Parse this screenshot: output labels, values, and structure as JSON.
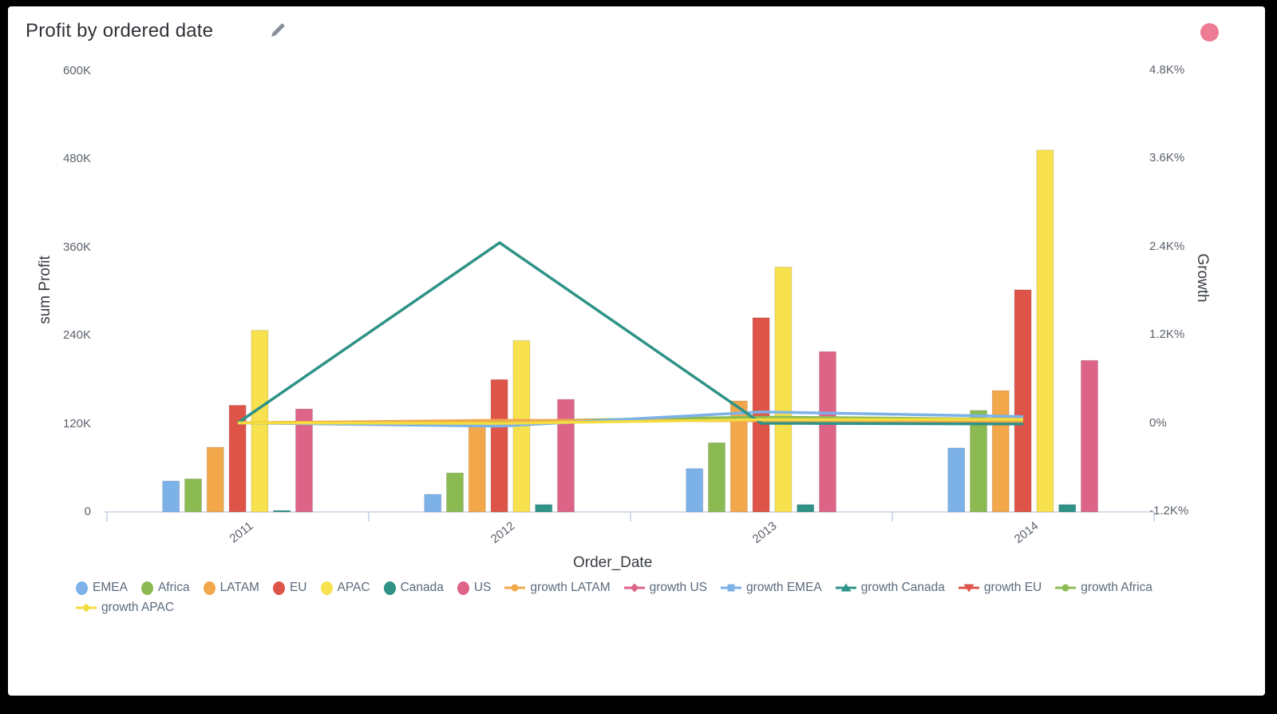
{
  "header": {
    "title": "Profit by ordered date",
    "edit_icon": "pencil-edit-icon",
    "status_dot_color": "#ec7b93"
  },
  "chart_data": {
    "type": "bar",
    "subtype": "grouped bars with growth lines on secondary axis",
    "title": "Profit by ordered date",
    "xlabel": "Order_Date",
    "ylabel_left": "sum Profit",
    "ylabel_right": "Growth",
    "categories": [
      "2011",
      "2012",
      "2013",
      "2014"
    ],
    "left_axis": {
      "ticks": [
        "600K",
        "480K",
        "360K",
        "240K",
        "120K",
        "0"
      ],
      "tick_values_k": [
        600,
        480,
        360,
        240,
        120,
        0
      ],
      "min": 0,
      "max_k": 600
    },
    "right_axis": {
      "ticks": [
        "4.8K%",
        "3.6K%",
        "2.4K%",
        "1.2K%",
        "0%",
        "-1.2K%"
      ],
      "tick_values_pct": [
        4800,
        3600,
        2400,
        1200,
        0,
        -1200
      ],
      "min_pct": -1200,
      "max_pct": 4800
    },
    "value_unit": "K",
    "grid": "off",
    "legend_position": "bottom",
    "bar_series": [
      {
        "name": "EMEA",
        "color": "#7cb2e8",
        "values_k": [
          42,
          24,
          59,
          87
        ]
      },
      {
        "name": "Africa",
        "color": "#8cba52",
        "values_k": [
          45,
          53,
          94,
          138
        ]
      },
      {
        "name": "LATAM",
        "color": "#f2a74b",
        "values_k": [
          88,
          118,
          151,
          165
        ]
      },
      {
        "name": "EU",
        "color": "#de5449",
        "values_k": [
          145,
          180,
          264,
          302
        ]
      },
      {
        "name": "APAC",
        "color": "#f7e14e",
        "values_k": [
          247,
          233,
          333,
          492
        ]
      },
      {
        "name": "Canada",
        "color": "#2e9287",
        "values_k": [
          2,
          10,
          10,
          10
        ]
      },
      {
        "name": "US",
        "color": "#dd6387",
        "values_k": [
          140,
          153,
          218,
          206
        ]
      }
    ],
    "line_series": [
      {
        "name": "growth LATAM",
        "color": "#f2a74b",
        "marker": "circle",
        "values_pct": [
          0,
          35,
          29,
          9
        ]
      },
      {
        "name": "growth US",
        "color": "#dd6387",
        "marker": "diamond",
        "values_pct": [
          0,
          10,
          43,
          -6
        ]
      },
      {
        "name": "growth EMEA",
        "color": "#7cb2e8",
        "marker": "square",
        "values_pct": [
          0,
          -45,
          150,
          86
        ]
      },
      {
        "name": "growth Canada",
        "color": "#2e9287",
        "marker": "triangle-up",
        "values_pct": [
          0,
          2450,
          -5,
          -15
        ]
      },
      {
        "name": "growth EU",
        "color": "#de5449",
        "marker": "triangle-down",
        "values_pct": [
          0,
          24,
          47,
          14
        ]
      },
      {
        "name": "growth Africa",
        "color": "#8cba52",
        "marker": "circle",
        "values_pct": [
          0,
          21,
          79,
          48
        ]
      },
      {
        "name": "growth APAC",
        "color": "#f3dc3f",
        "marker": "diamond",
        "values_pct": [
          0,
          -6,
          44,
          48
        ]
      }
    ],
    "legend_row1": [
      "EMEA",
      "Africa",
      "LATAM",
      "EU",
      "APAC",
      "Canada",
      "US",
      "growth LATAM",
      "growth US",
      "growth EMEA",
      "growth Canada",
      "growth EU",
      "growth Africa"
    ],
    "legend_row2": [
      "growth APAC"
    ]
  }
}
